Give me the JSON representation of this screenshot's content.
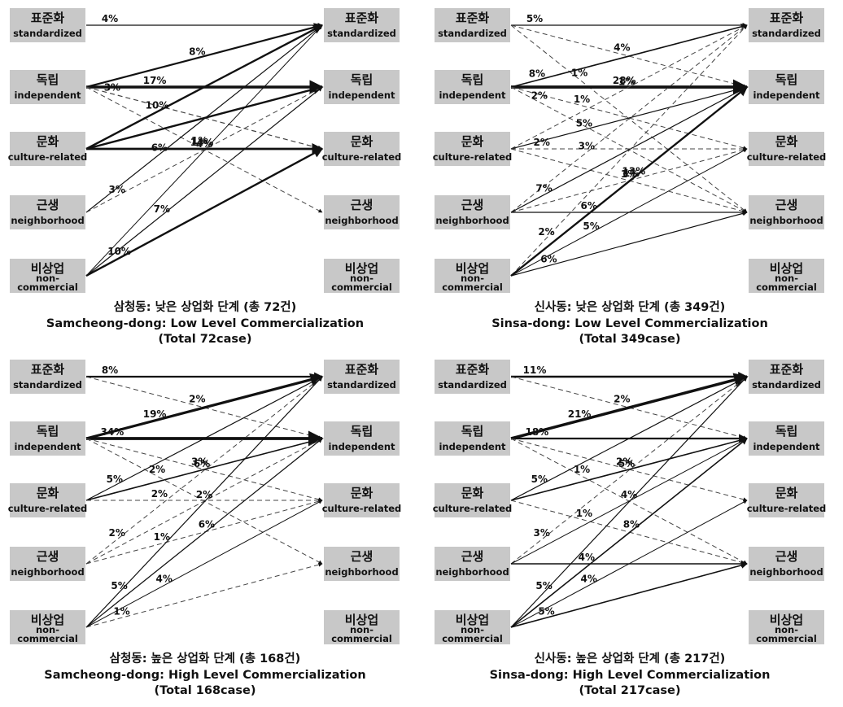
{
  "panels": [
    {
      "caption": [
        "삼청동: 낮은 상업화 단계 (총 72건)",
        "Samcheong-dong: Low Level Commercialization",
        "(Total  72case)"
      ],
      "nodes": [
        {
          "ko": "표준화",
          "en": [
            "standardized"
          ]
        },
        {
          "ko": "독립",
          "en": [
            "independent"
          ]
        },
        {
          "ko": "문화",
          "en": [
            "culture-related"
          ]
        },
        {
          "ko": "근생",
          "en": [
            "neighborhood"
          ]
        },
        {
          "ko": "비상업",
          "en": [
            "non-",
            "commercial"
          ]
        }
      ],
      "edges": [
        {
          "from": 0,
          "to": 0,
          "pct": "4%",
          "w": 1.2,
          "dash": false
        },
        {
          "from": 1,
          "to": 0,
          "pct": "8%",
          "w": 2.2,
          "dash": false
        },
        {
          "from": 1,
          "to": 1,
          "pct": "17%",
          "w": 3.5,
          "dash": false
        },
        {
          "from": 1,
          "to": 2,
          "pct": "3%",
          "w": 1.2,
          "dash": true
        },
        {
          "from": 1,
          "to": 3,
          "pct": "1%",
          "w": 1.0,
          "dash": true
        },
        {
          "from": 2,
          "to": 0,
          "pct": "10%",
          "w": 2.4,
          "dash": false
        },
        {
          "from": 2,
          "to": 1,
          "pct": "",
          "w": 2.4,
          "dash": false
        },
        {
          "from": 2,
          "to": 2,
          "pct": "14%",
          "w": 2.8,
          "dash": false
        },
        {
          "from": 3,
          "to": 0,
          "pct": "6%",
          "w": 1.2,
          "dash": false
        },
        {
          "from": 3,
          "to": 1,
          "pct": "3%",
          "w": 1.0,
          "dash": true
        },
        {
          "from": 4,
          "to": 0,
          "pct": "4%",
          "w": 1.0,
          "dash": false
        },
        {
          "from": 4,
          "to": 1,
          "pct": "7%",
          "w": 1.2,
          "dash": false
        },
        {
          "from": 4,
          "to": 2,
          "pct": "10%",
          "w": 2.4,
          "dash": false
        }
      ]
    },
    {
      "caption": [
        "신사동: 낮은 상업화 단계 (총 349건)",
        "Sinsa-dong: Low Level Commercialization",
        "(Total  349case)"
      ],
      "nodes": [
        {
          "ko": "표준화",
          "en": [
            "standardized"
          ]
        },
        {
          "ko": "독립",
          "en": [
            "independent"
          ]
        },
        {
          "ko": "문화",
          "en": [
            "culture-related"
          ]
        },
        {
          "ko": "근생",
          "en": [
            "neighborhood"
          ]
        },
        {
          "ko": "비상업",
          "en": [
            "non-",
            "commercial"
          ]
        }
      ],
      "edges": [
        {
          "from": 0,
          "to": 0,
          "pct": "5%",
          "w": 1.2,
          "dash": false
        },
        {
          "from": 0,
          "to": 1,
          "pct": "4%",
          "w": 1.0,
          "dash": true
        },
        {
          "from": 0,
          "to": 3,
          "pct": "1%",
          "w": 1.0,
          "dash": true
        },
        {
          "from": 1,
          "to": 0,
          "pct": "8%",
          "w": 1.6,
          "dash": false
        },
        {
          "from": 1,
          "to": 1,
          "pct": "28%",
          "w": 3.8,
          "dash": false
        },
        {
          "from": 1,
          "to": 2,
          "pct": "1%",
          "w": 1.0,
          "dash": true
        },
        {
          "from": 1,
          "to": 3,
          "pct": "2%",
          "w": 1.0,
          "dash": true
        },
        {
          "from": 2,
          "to": 0,
          "pct": "1%",
          "w": 1.0,
          "dash": true
        },
        {
          "from": 2,
          "to": 1,
          "pct": "5%",
          "w": 1.2,
          "dash": false
        },
        {
          "from": 2,
          "to": 2,
          "pct": "2%",
          "w": 1.0,
          "dash": true
        },
        {
          "from": 2,
          "to": 3,
          "pct": "1%",
          "w": 1.0,
          "dash": true
        },
        {
          "from": 3,
          "to": 0,
          "pct": "3%",
          "w": 1.0,
          "dash": true
        },
        {
          "from": 3,
          "to": 1,
          "pct": "7%",
          "w": 1.2,
          "dash": false
        },
        {
          "from": 3,
          "to": 2,
          "pct": "1%",
          "w": 1.0,
          "dash": true
        },
        {
          "from": 3,
          "to": 3,
          "pct": "6%",
          "w": 1.2,
          "dash": false
        },
        {
          "from": 4,
          "to": 0,
          "pct": "2%",
          "w": 1.0,
          "dash": true
        },
        {
          "from": 4,
          "to": 1,
          "pct": "13%",
          "w": 2.4,
          "dash": false
        },
        {
          "from": 4,
          "to": 2,
          "pct": "5%",
          "w": 1.0,
          "dash": false
        },
        {
          "from": 4,
          "to": 3,
          "pct": "6%",
          "w": 1.2,
          "dash": false
        }
      ]
    },
    {
      "caption": [
        "삼청동: 높은 상업화 단계 (총 168건)",
        "Samcheong-dong: High Level Commercialization",
        "(Total  168case)"
      ],
      "nodes": [
        {
          "ko": "표준화",
          "en": [
            "standardized"
          ]
        },
        {
          "ko": "독립",
          "en": [
            "independent"
          ]
        },
        {
          "ko": "문화",
          "en": [
            "culture-related"
          ]
        },
        {
          "ko": "근생",
          "en": [
            "neighborhood"
          ]
        },
        {
          "ko": "비상업",
          "en": [
            "non-",
            "commercial"
          ]
        }
      ],
      "edges": [
        {
          "from": 0,
          "to": 0,
          "pct": "8%",
          "w": 2.2,
          "dash": false
        },
        {
          "from": 0,
          "to": 1,
          "pct": "2%",
          "w": 1.0,
          "dash": true
        },
        {
          "from": 1,
          "to": 0,
          "pct": "19%",
          "w": 3.2,
          "dash": false
        },
        {
          "from": 1,
          "to": 1,
          "pct": "34%",
          "w": 3.8,
          "dash": false
        },
        {
          "from": 1,
          "to": 2,
          "pct": "3%",
          "w": 1.0,
          "dash": true
        },
        {
          "from": 1,
          "to": 3,
          "pct": "2%",
          "w": 1.0,
          "dash": true
        },
        {
          "from": 2,
          "to": 0,
          "pct": "5%",
          "w": 1.2,
          "dash": false
        },
        {
          "from": 2,
          "to": 1,
          "pct": "6%",
          "w": 1.6,
          "dash": false
        },
        {
          "from": 2,
          "to": 2,
          "pct": "2%",
          "w": 1.0,
          "dash": true
        },
        {
          "from": 3,
          "to": 0,
          "pct": "2%",
          "w": 1.0,
          "dash": true
        },
        {
          "from": 3,
          "to": 1,
          "pct": "2%",
          "w": 1.0,
          "dash": true
        },
        {
          "from": 3,
          "to": 2,
          "pct": "1%",
          "w": 1.0,
          "dash": true
        },
        {
          "from": 4,
          "to": 0,
          "pct": "5%",
          "w": 1.2,
          "dash": false
        },
        {
          "from": 4,
          "to": 1,
          "pct": "6%",
          "w": 1.2,
          "dash": false
        },
        {
          "from": 4,
          "to": 2,
          "pct": "4%",
          "w": 1.0,
          "dash": false
        },
        {
          "from": 4,
          "to": 3,
          "pct": "1%",
          "w": 1.0,
          "dash": true
        }
      ]
    },
    {
      "caption": [
        "신사동: 높은 상업화 단계 (총 217건)",
        "Sinsa-dong: High Level Commercialization",
        "(Total  217case)"
      ],
      "nodes": [
        {
          "ko": "표준화",
          "en": [
            "standardized"
          ]
        },
        {
          "ko": "독립",
          "en": [
            "independent"
          ]
        },
        {
          "ko": "문화",
          "en": [
            "culture-related"
          ]
        },
        {
          "ko": "근생",
          "en": [
            "neighborhood"
          ]
        },
        {
          "ko": "비상업",
          "en": [
            "non-",
            "commercial"
          ]
        }
      ],
      "edges": [
        {
          "from": 0,
          "to": 0,
          "pct": "11%",
          "w": 2.4,
          "dash": false
        },
        {
          "from": 0,
          "to": 1,
          "pct": "2%",
          "w": 1.0,
          "dash": true
        },
        {
          "from": 1,
          "to": 0,
          "pct": "21%",
          "w": 3.5,
          "dash": false
        },
        {
          "from": 1,
          "to": 1,
          "pct": "18%",
          "w": 2.2,
          "dash": false
        },
        {
          "from": 1,
          "to": 2,
          "pct": "2%",
          "w": 1.0,
          "dash": true
        },
        {
          "from": 1,
          "to": 3,
          "pct": "1%",
          "w": 1.0,
          "dash": true
        },
        {
          "from": 2,
          "to": 0,
          "pct": "5%",
          "w": 1.2,
          "dash": false
        },
        {
          "from": 2,
          "to": 1,
          "pct": "5%",
          "w": 1.6,
          "dash": false
        },
        {
          "from": 2,
          "to": 3,
          "pct": "1%",
          "w": 1.0,
          "dash": true
        },
        {
          "from": 3,
          "to": 0,
          "pct": "3%",
          "w": 1.0,
          "dash": true
        },
        {
          "from": 3,
          "to": 1,
          "pct": "4%",
          "w": 1.0,
          "dash": false
        },
        {
          "from": 3,
          "to": 3,
          "pct": "4%",
          "w": 1.6,
          "dash": false
        },
        {
          "from": 4,
          "to": 0,
          "pct": "5%",
          "w": 1.2,
          "dash": false
        },
        {
          "from": 4,
          "to": 1,
          "pct": "8%",
          "w": 1.6,
          "dash": false
        },
        {
          "from": 4,
          "to": 2,
          "pct": "4%",
          "w": 1.0,
          "dash": false
        },
        {
          "from": 4,
          "to": 3,
          "pct": "5%",
          "w": 1.6,
          "dash": false
        }
      ]
    }
  ]
}
